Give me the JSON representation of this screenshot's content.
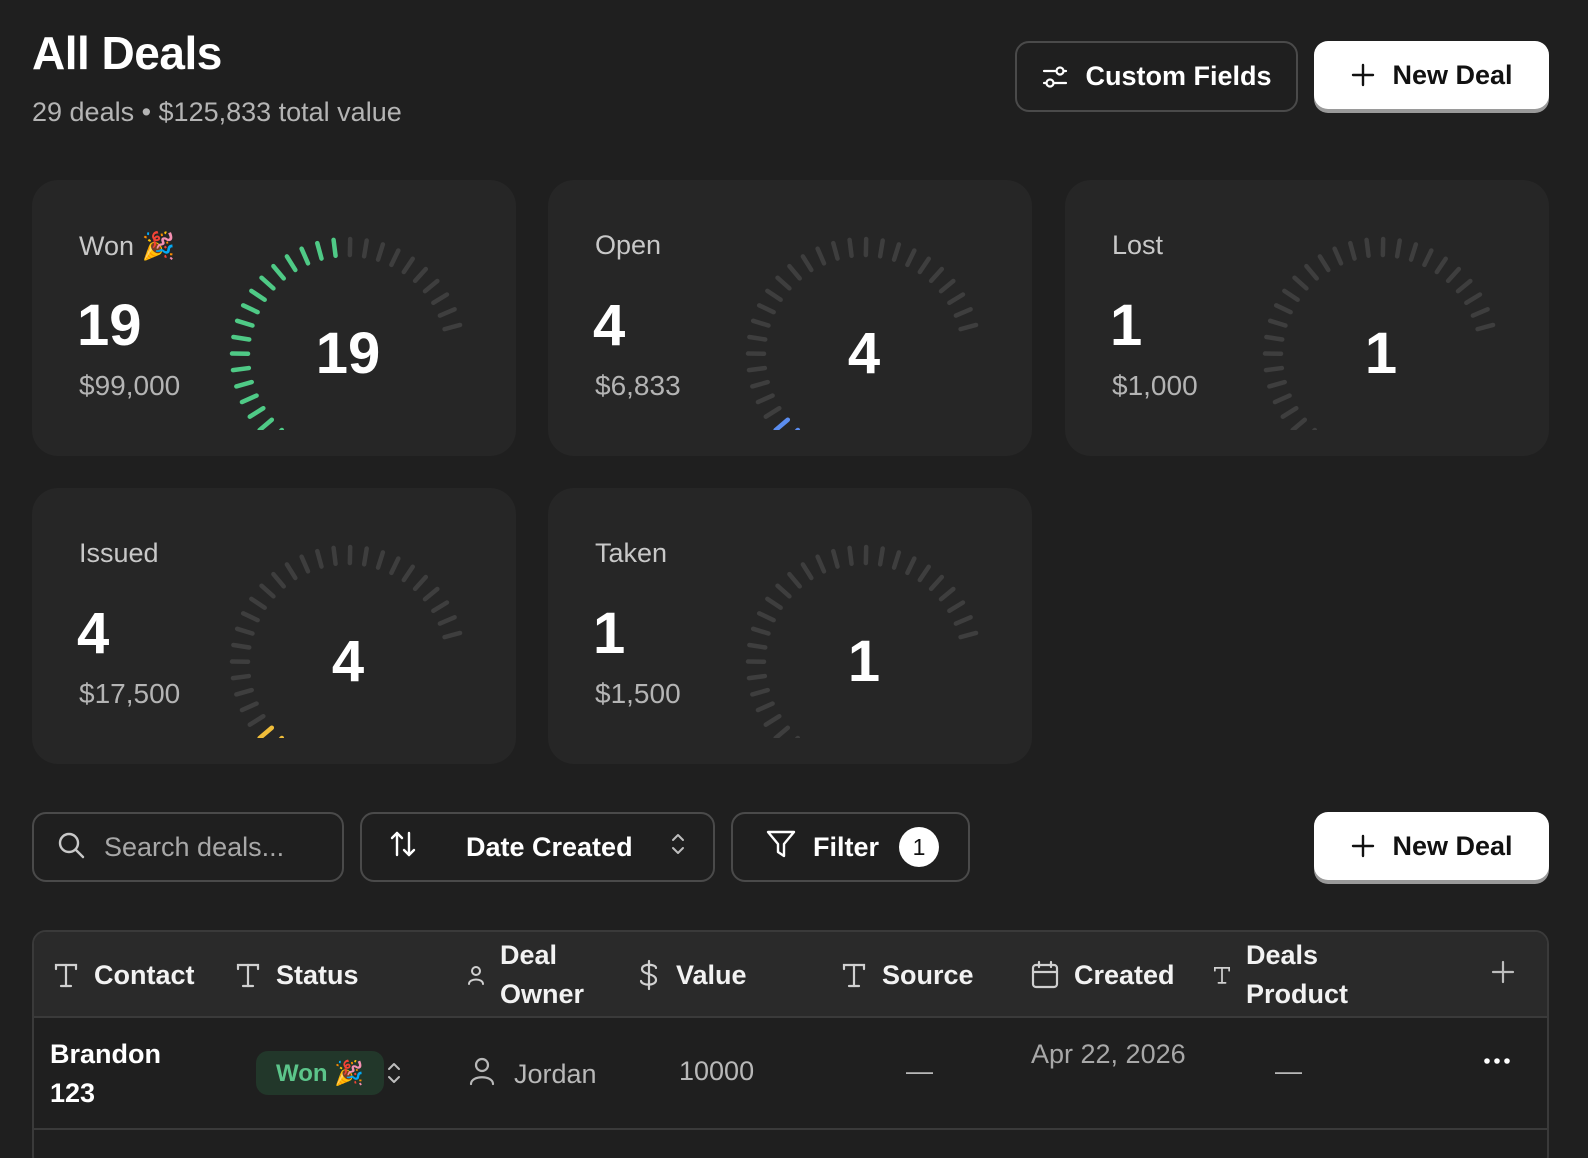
{
  "header": {
    "title": "All Deals",
    "subtitle": "29 deals • $125,833 total value",
    "custom_fields_label": "Custom Fields",
    "new_deal_label": "New Deal"
  },
  "colors": {
    "won": "#4fca86",
    "open": "#5b8def",
    "lost": "#e05d5d",
    "issued": "#f0bd3a",
    "taken": "#a475e8",
    "inactive_tick": "#3e3e3e"
  },
  "stats": [
    {
      "key": "won",
      "label": "Won 🎉",
      "count": "19",
      "amount": "$99,000",
      "gauge_value": "19",
      "fill_fraction": 0.655
    },
    {
      "key": "open",
      "label": "Open",
      "count": "4",
      "amount": "$6,833",
      "gauge_value": "4",
      "fill_fraction": 0.138
    },
    {
      "key": "lost",
      "label": "Lost",
      "count": "1",
      "amount": "$1,000",
      "gauge_value": "1",
      "fill_fraction": 0.034
    },
    {
      "key": "issued",
      "label": "Issued",
      "count": "4",
      "amount": "$17,500",
      "gauge_value": "4",
      "fill_fraction": 0.138
    },
    {
      "key": "taken",
      "label": "Taken",
      "count": "1",
      "amount": "$1,500",
      "gauge_value": "1",
      "fill_fraction": 0.034
    }
  ],
  "toolbar": {
    "search_placeholder": "Search deals...",
    "sort_label": "Date Created",
    "filter_label": "Filter",
    "filter_count": "1",
    "new_deal_label": "New Deal"
  },
  "table": {
    "columns": [
      {
        "label": "Contact",
        "icon": "text-type-icon"
      },
      {
        "label": "Status",
        "icon": "text-type-icon"
      },
      {
        "label": "Deal Owner",
        "icon": "user-icon"
      },
      {
        "label": "Value",
        "icon": "dollar-icon"
      },
      {
        "label": "Source",
        "icon": "text-type-icon"
      },
      {
        "label": "Created",
        "icon": "calendar-icon"
      },
      {
        "label": "Deals Product",
        "icon": "text-type-icon"
      }
    ],
    "rows": [
      {
        "contact": "Brandon 123",
        "status": "Won 🎉",
        "owner": "Jordan",
        "value": "10000",
        "source": "—",
        "created": "Apr 22, 2026",
        "product": "—"
      }
    ]
  }
}
